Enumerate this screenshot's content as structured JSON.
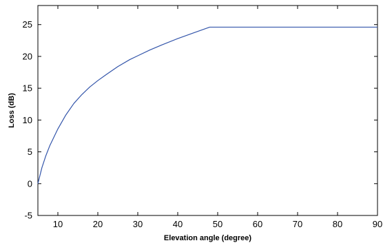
{
  "chart_data": {
    "type": "line",
    "title": "",
    "xlabel": "Elevation angle (degree)",
    "ylabel": "Loss (dB)",
    "xlim": [
      5,
      90
    ],
    "ylim": [
      -5,
      28
    ],
    "xticks": [
      10,
      20,
      30,
      40,
      50,
      60,
      70,
      80,
      90
    ],
    "yticks": [
      -5,
      0,
      5,
      10,
      15,
      20,
      25
    ],
    "grid": false,
    "legend": "none",
    "series": [
      {
        "color": "#3355aa",
        "x": [
          5,
          6,
          7,
          8,
          10,
          12,
          14,
          16,
          18,
          20,
          22,
          25,
          28,
          30,
          33,
          36,
          40,
          44,
          48,
          50,
          60,
          70,
          80,
          90
        ],
        "y": [
          0,
          2.5,
          4.4,
          6.0,
          8.6,
          10.8,
          12.6,
          14.0,
          15.2,
          16.2,
          17.1,
          18.4,
          19.5,
          20.1,
          21.0,
          21.8,
          22.8,
          23.7,
          24.6,
          24.6,
          24.6,
          24.6,
          24.6,
          24.6
        ]
      }
    ]
  }
}
